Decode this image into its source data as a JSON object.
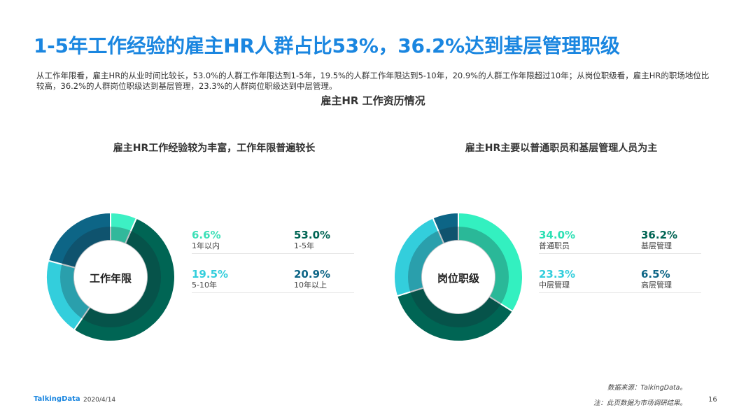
{
  "title": "1-5年工作经验的雇主HR人群占比53%，36.2%达到基层管理职级",
  "description": "从工作年限看，雇主HR的从业时间比较长，53.0%的人群工作年限达到1-5年，19.5%的人群工作年限达到5-10年，20.9%的人群工作年限超过10年；从岗位职级看，雇主HR的职场地位比较高，36.2%的人群岗位职级达到基层管理，23.3%的人群岗位职级达到中层管理。",
  "subtitle": "雇主HR  工作资历情况",
  "chart_data": [
    {
      "type": "pie",
      "title": "雇主HR工作经验较为丰富，工作年限普遍较长",
      "center_label": "工作年限",
      "labels": [
        "1年以内",
        "1-5年",
        "5-10年",
        "10年以上"
      ],
      "values": [
        6.6,
        53.0,
        19.5,
        20.9
      ],
      "value_labels": [
        "6.6%",
        "53.0%",
        "19.5%",
        "20.9%"
      ],
      "colors": [
        "#3df0c4",
        "#006554",
        "#33cedc",
        "#0d6586"
      ]
    },
    {
      "type": "pie",
      "title": "雇主HR主要以普通职员和基层管理人员为主",
      "center_label": "岗位职级",
      "labels": [
        "普通职员",
        "基层管理",
        "中层管理",
        "高层管理"
      ],
      "values": [
        34.0,
        36.2,
        23.3,
        6.5
      ],
      "value_labels": [
        "34.0%",
        "36.2%",
        "23.3%",
        "6.5%"
      ],
      "colors": [
        "#33f0c0",
        "#006554",
        "#33cedc",
        "#0d6586"
      ]
    }
  ],
  "footer": {
    "logo": "TalkingData",
    "date": "2020/4/14",
    "source": "数据来源：TalkingData。",
    "note": "注：此页数据为市场调研结果。",
    "page": "16"
  }
}
